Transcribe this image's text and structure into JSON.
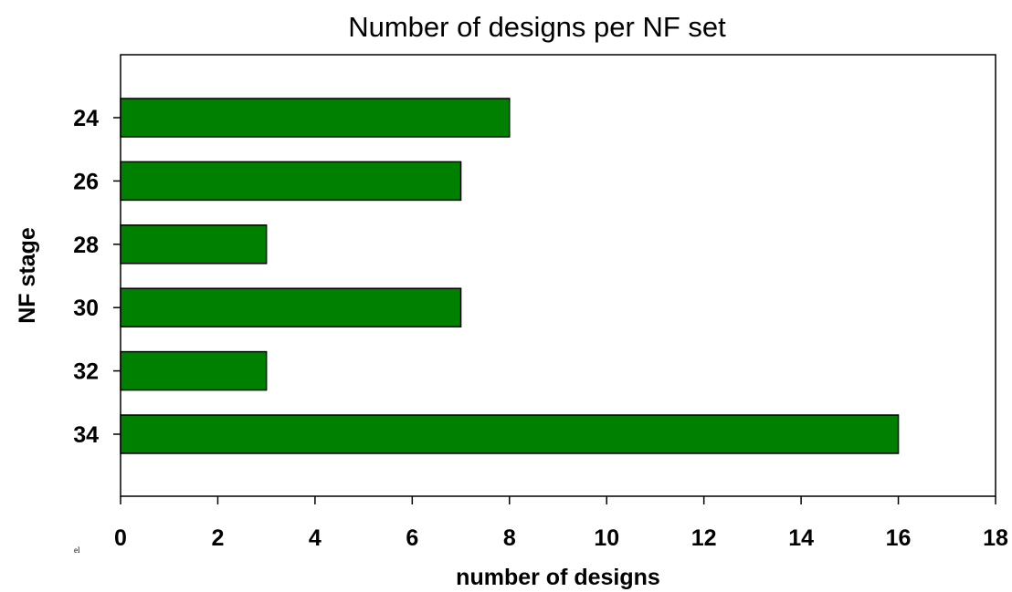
{
  "chart_data": {
    "type": "bar",
    "orientation": "horizontal",
    "title": "Number of designs per NF set",
    "xlabel": "number of designs",
    "ylabel": "NF stage",
    "categories": [
      "24",
      "26",
      "28",
      "30",
      "32",
      "34"
    ],
    "series": [
      {
        "values": [
          8,
          7,
          3,
          7,
          3,
          16
        ]
      }
    ],
    "xlim": [
      0,
      18
    ],
    "x_ticks": [
      "0",
      "2",
      "4",
      "6",
      "8",
      "10",
      "12",
      "14",
      "16",
      "18"
    ],
    "grid": false,
    "legend": "none",
    "bar_color": "#008000",
    "bar_edge_color": "#000000"
  },
  "stray_mark": "el"
}
